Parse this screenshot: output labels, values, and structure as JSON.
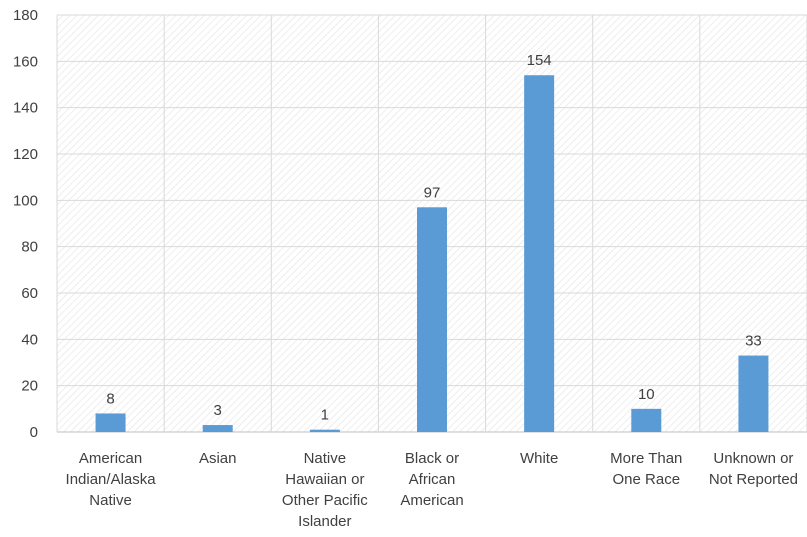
{
  "chart_data": {
    "type": "bar",
    "categories": [
      "American Indian/Alaska Native",
      "Asian",
      "Native Hawaiian or Other Pacific Islander",
      "Black or African American",
      "White",
      "More Than One Race",
      "Unknown or Not Reported"
    ],
    "category_label_lines": [
      [
        "American",
        "Indian/Alaska",
        "Native"
      ],
      [
        "Asian"
      ],
      [
        "Native",
        "Hawaiian or",
        "Other Pacific",
        "Islander"
      ],
      [
        "Black or",
        "African",
        "American"
      ],
      [
        "White"
      ],
      [
        "More Than",
        "One Race"
      ],
      [
        "Unknown or",
        "Not Reported"
      ]
    ],
    "values": [
      8,
      3,
      1,
      97,
      154,
      10,
      33
    ],
    "data_labels": [
      "8",
      "3",
      "1",
      "97",
      "154",
      "10",
      "33"
    ],
    "y_ticks": [
      0,
      20,
      40,
      60,
      80,
      100,
      120,
      140,
      160,
      180
    ],
    "ylim": [
      0,
      180
    ],
    "title": "",
    "xlabel": "",
    "ylabel": "",
    "grid": true,
    "legend": "none",
    "bar_color": "#5b9bd5",
    "plot_pattern": "diagonal-hatch"
  }
}
